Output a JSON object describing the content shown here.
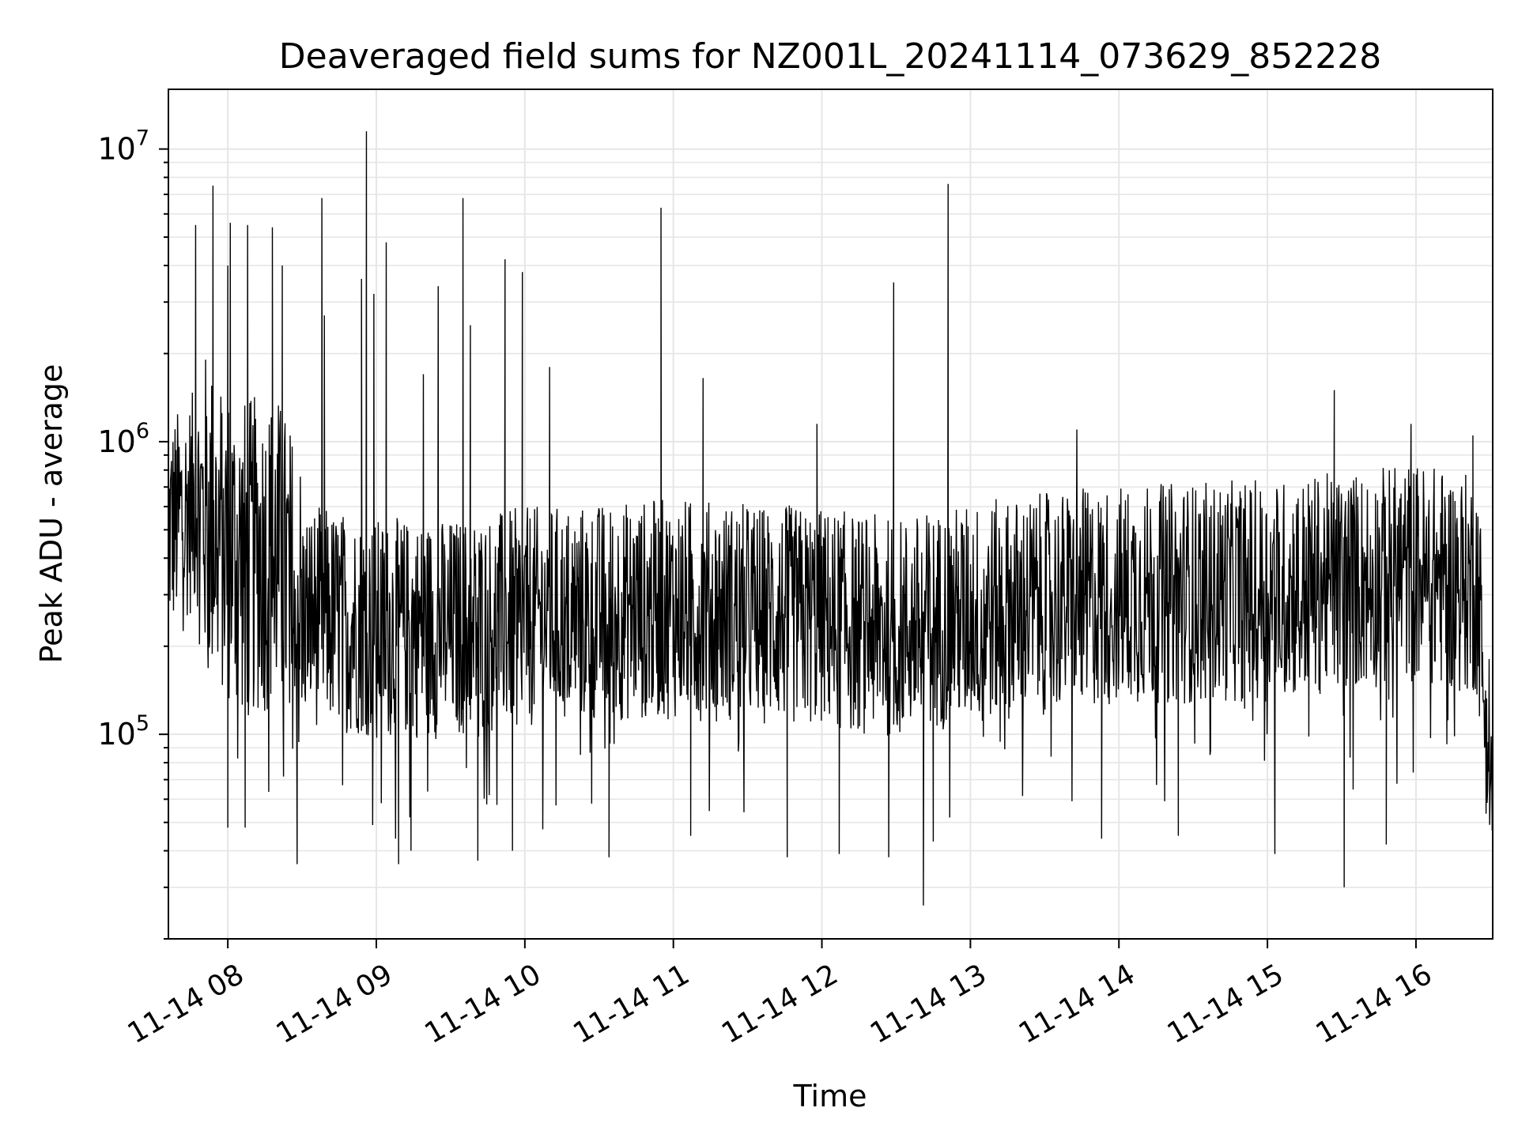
{
  "chart_data": {
    "type": "line",
    "title": "Deaveraged field sums for NZ001L_20241114_073629_852228",
    "xlabel": "Time",
    "ylabel": "Peak ADU - average",
    "yscale": "log",
    "ylim": [
      20000,
      16000000
    ],
    "xlim": [
      "2024-11-14 07:36",
      "2024-11-14 16:31"
    ],
    "grid": true,
    "line_color": "#000000",
    "grid_color": "#e6e6e6",
    "x_ticks": [
      {
        "t": "2024-11-14 08:00",
        "label": "11-14 08"
      },
      {
        "t": "2024-11-14 09:00",
        "label": "11-14 09"
      },
      {
        "t": "2024-11-14 10:00",
        "label": "11-14 10"
      },
      {
        "t": "2024-11-14 11:00",
        "label": "11-14 11"
      },
      {
        "t": "2024-11-14 12:00",
        "label": "11-14 12"
      },
      {
        "t": "2024-11-14 13:00",
        "label": "11-14 13"
      },
      {
        "t": "2024-11-14 14:00",
        "label": "11-14 14"
      },
      {
        "t": "2024-11-14 15:00",
        "label": "11-14 15"
      },
      {
        "t": "2024-11-14 16:00",
        "label": "11-14 16"
      }
    ],
    "y_ticks": [
      {
        "value": 100000,
        "base": "10",
        "exp": "5"
      },
      {
        "value": 1000000,
        "base": "10",
        "exp": "6"
      },
      {
        "value": 10000000,
        "base": "10",
        "exp": "7"
      }
    ],
    "series": [
      {
        "trend": [
          [
            "2024-11-14 07:36",
            500000
          ],
          [
            "2024-11-14 07:48",
            650000
          ],
          [
            "2024-11-14 07:55",
            500000
          ],
          [
            "2024-11-14 08:05",
            400000
          ],
          [
            "2024-11-14 08:20",
            420000
          ],
          [
            "2024-11-14 08:30",
            260000
          ],
          [
            "2024-11-14 09:00",
            230000
          ],
          [
            "2024-11-14 09:30",
            230000
          ],
          [
            "2024-11-14 10:00",
            250000
          ],
          [
            "2024-11-14 11:00",
            270000
          ],
          [
            "2024-11-14 12:00",
            250000
          ],
          [
            "2024-11-14 12:30",
            230000
          ],
          [
            "2024-11-14 13:00",
            260000
          ],
          [
            "2024-11-14 14:00",
            300000
          ],
          [
            "2024-11-14 15:00",
            310000
          ],
          [
            "2024-11-14 15:30",
            330000
          ],
          [
            "2024-11-14 16:00",
            360000
          ],
          [
            "2024-11-14 16:25",
            320000
          ],
          [
            "2024-11-14 16:31",
            60000
          ]
        ],
        "spikes": [
          [
            "2024-11-14 07:47",
            5500000
          ],
          [
            "2024-11-14 07:54",
            7500000
          ],
          [
            "2024-11-14 08:00",
            4000000
          ],
          [
            "2024-11-14 08:01",
            5600000
          ],
          [
            "2024-11-14 08:08",
            5500000
          ],
          [
            "2024-11-14 08:18",
            5400000
          ],
          [
            "2024-11-14 08:22",
            4000000
          ],
          [
            "2024-11-14 08:39",
            2700000
          ],
          [
            "2024-11-14 08:38",
            6800000
          ],
          [
            "2024-11-14 08:54",
            3600000
          ],
          [
            "2024-11-14 08:56",
            11500000
          ],
          [
            "2024-11-14 08:59",
            3200000
          ],
          [
            "2024-11-14 09:04",
            4800000
          ],
          [
            "2024-11-14 09:19",
            1700000
          ],
          [
            "2024-11-14 09:25",
            3400000
          ],
          [
            "2024-11-14 09:35",
            6800000
          ],
          [
            "2024-11-14 09:38",
            2500000
          ],
          [
            "2024-11-14 09:52",
            4200000
          ],
          [
            "2024-11-14 09:59",
            3800000
          ],
          [
            "2024-11-14 10:10",
            1800000
          ],
          [
            "2024-11-14 10:55",
            6300000
          ],
          [
            "2024-11-14 11:12",
            1650000
          ],
          [
            "2024-11-14 11:58",
            1150000
          ],
          [
            "2024-11-14 12:29",
            3500000
          ],
          [
            "2024-11-14 12:51",
            7600000
          ],
          [
            "2024-11-14 13:43",
            1100000
          ],
          [
            "2024-11-14 15:27",
            1500000
          ],
          [
            "2024-11-14 15:58",
            1150000
          ],
          [
            "2024-11-14 16:23",
            1050000
          ]
        ],
        "dips": [
          [
            "2024-11-14 08:00",
            48000
          ],
          [
            "2024-11-14 08:07",
            48000
          ],
          [
            "2024-11-14 08:28",
            36000
          ],
          [
            "2024-11-14 09:09",
            36000
          ],
          [
            "2024-11-14 09:14",
            40000
          ],
          [
            "2024-11-14 09:41",
            37000
          ],
          [
            "2024-11-14 09:55",
            40000
          ],
          [
            "2024-11-14 10:34",
            38000
          ],
          [
            "2024-11-14 11:07",
            45000
          ],
          [
            "2024-11-14 11:46",
            38000
          ],
          [
            "2024-11-14 12:07",
            39000
          ],
          [
            "2024-11-14 12:27",
            38000
          ],
          [
            "2024-11-14 12:41",
            26000
          ],
          [
            "2024-11-14 12:45",
            43000
          ],
          [
            "2024-11-14 13:53",
            44000
          ],
          [
            "2024-11-14 14:24",
            45000
          ],
          [
            "2024-11-14 15:03",
            39000
          ],
          [
            "2024-11-14 15:31",
            30000
          ],
          [
            "2024-11-14 15:48",
            42000
          ],
          [
            "2024-11-14 16:31",
            42000
          ]
        ]
      }
    ]
  }
}
